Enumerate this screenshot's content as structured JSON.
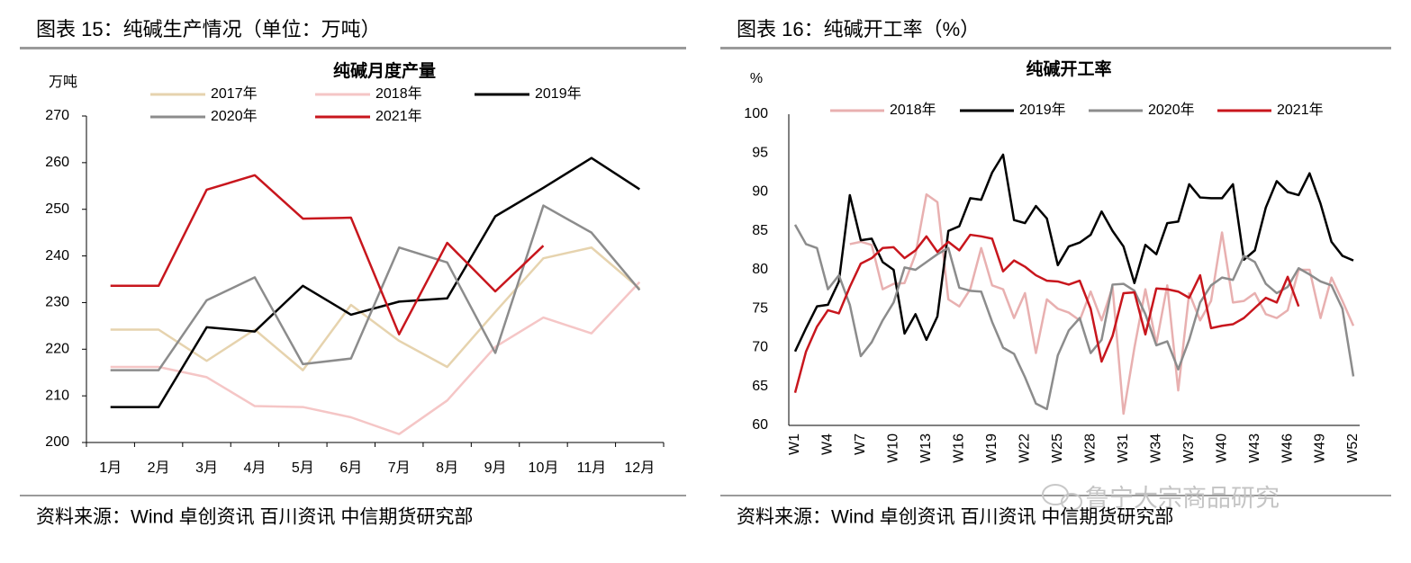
{
  "watermark": "鲁宁大宗商品研究",
  "chart_data": [
    {
      "type": "line",
      "caption": "图表 15：纯碱生产情况（单位：万吨）",
      "title": "纯碱月度产量",
      "y_label": "万吨",
      "source": "资料来源：Wind 卓创资讯 百川资讯 中信期货研究部",
      "categories": [
        "1月",
        "2月",
        "3月",
        "4月",
        "5月",
        "6月",
        "7月",
        "8月",
        "9月",
        "10月",
        "11月",
        "12月"
      ],
      "ylim": [
        200,
        270
      ],
      "yticks": [
        200,
        210,
        220,
        230,
        240,
        250,
        260,
        270
      ],
      "grid": false,
      "series": [
        {
          "name": "2017年",
          "color": "#e6d3ae",
          "values": [
            224.2,
            224.2,
            217.5,
            224.2,
            215.5,
            229.5,
            221.8,
            216.2,
            228,
            239.5,
            241.8,
            233
          ]
        },
        {
          "name": "2018年",
          "color": "#f5c6c6",
          "values": [
            216.2,
            216.2,
            214,
            207.8,
            207.6,
            205.4,
            201.8,
            209,
            220.5,
            226.8,
            223.4,
            234.4
          ]
        },
        {
          "name": "2019年",
          "color": "#000000",
          "values": [
            207.6,
            207.6,
            224.7,
            223.8,
            233.6,
            227.4,
            230.2,
            230.9,
            248.5,
            254.6,
            261,
            254.3
          ]
        },
        {
          "name": "2020年",
          "color": "#8c8c8c",
          "values": [
            215.5,
            215.5,
            230.5,
            235.4,
            216.8,
            218,
            241.8,
            238.6,
            219.2,
            250.8,
            245,
            232.7
          ]
        },
        {
          "name": "2021年",
          "color": "#c8161d",
          "values": [
            233.6,
            233.6,
            254.2,
            257.3,
            248,
            248.2,
            223.2,
            242.8,
            232.4,
            242.2,
            null,
            null
          ]
        }
      ]
    },
    {
      "type": "line",
      "caption": "图表 16：纯碱开工率（%）",
      "title": "纯碱开工率",
      "y_label": "%",
      "source": "资料来源：Wind 卓创资讯 百川资讯 中信期货研究部",
      "categories": [
        "W1",
        null,
        null,
        "W4",
        null,
        null,
        "W7",
        null,
        null,
        "W10",
        null,
        null,
        "W13",
        null,
        null,
        "W16",
        null,
        null,
        "W19",
        null,
        null,
        "W22",
        null,
        null,
        "W25",
        null,
        null,
        "W28",
        null,
        null,
        "W31",
        null,
        null,
        "W34",
        null,
        null,
        "W37",
        null,
        null,
        "W40",
        null,
        null,
        "W43",
        null,
        null,
        "W46",
        null,
        null,
        "W49",
        null,
        null,
        "W52"
      ],
      "ylim": [
        60,
        100
      ],
      "yticks": [
        60,
        65,
        70,
        75,
        80,
        85,
        90,
        95,
        100
      ],
      "grid": false,
      "series": [
        {
          "name": "2018年",
          "color": "#e8b0b0",
          "values": [
            null,
            null,
            null,
            null,
            null,
            83.3,
            83.6,
            83.2,
            77.5,
            78.2,
            78.3,
            82,
            89.7,
            88.7,
            76.2,
            75.3,
            77.5,
            82.8,
            78,
            77.5,
            73.8,
            77,
            69.3,
            76.2,
            75,
            74.5,
            73.5,
            77.2,
            73.5,
            77.8,
            61.5,
            70,
            77.5,
            70.5,
            78,
            64.5,
            77,
            73.5,
            76,
            84.8,
            75.8,
            76,
            77,
            74.3,
            73.8,
            74.8,
            80,
            80,
            73.8,
            79,
            76,
            72.8
          ]
        },
        {
          "name": "2019年",
          "color": "#000000",
          "values": [
            69.5,
            72.5,
            75.3,
            75.5,
            78.5,
            89.6,
            83.8,
            84,
            81,
            80,
            71.8,
            74.3,
            71,
            74,
            85,
            85.6,
            89.2,
            89,
            92.5,
            94.8,
            86.4,
            86,
            88.2,
            86.6,
            80.6,
            83,
            83.5,
            84.5,
            87.5,
            85,
            83,
            78.3,
            83.2,
            82,
            86,
            86.2,
            91,
            89.3,
            89.2,
            89.2,
            91,
            81.3,
            82.5,
            88,
            91.4,
            90,
            89.6,
            92.4,
            88.5,
            83.6,
            81.8,
            81.2
          ]
        },
        {
          "name": "2020年",
          "color": "#8c8c8c",
          "values": [
            85.8,
            83.3,
            82.8,
            77.5,
            79.3,
            75.5,
            68.9,
            70.7,
            73.5,
            75.8,
            80.3,
            80,
            81,
            82,
            82.8,
            77.7,
            77.3,
            77.2,
            73.3,
            70,
            69.2,
            66.2,
            62.8,
            62.1,
            69,
            72.2,
            73.8,
            69.3,
            71,
            78.1,
            78.2,
            77.3,
            74.3,
            70.3,
            70.8,
            67.2,
            71,
            75.8,
            78,
            79,
            78.7,
            81.8,
            81,
            78.2,
            77,
            77.8,
            80.2,
            79.4,
            78.5,
            78,
            75,
            66.3
          ]
        },
        {
          "name": "2021年",
          "color": "#c8161d",
          "values": [
            64.2,
            69.5,
            72.7,
            74.8,
            74.4,
            77.8,
            80.8,
            81.5,
            82.8,
            82.9,
            81.5,
            82.5,
            84.3,
            82.3,
            83.6,
            82.5,
            84.5,
            84.3,
            84,
            79.8,
            81.2,
            80.4,
            79.3,
            78.6,
            78.5,
            78.1,
            78.6,
            75,
            68.2,
            71.5,
            77,
            77.1,
            71.7,
            77.6,
            77.5,
            77.2,
            76.4,
            79.3,
            72.5,
            72.8,
            73,
            73.8,
            75.1,
            76.4,
            75.8,
            79.1,
            75.3,
            null,
            null,
            null,
            null,
            null
          ]
        }
      ]
    }
  ]
}
